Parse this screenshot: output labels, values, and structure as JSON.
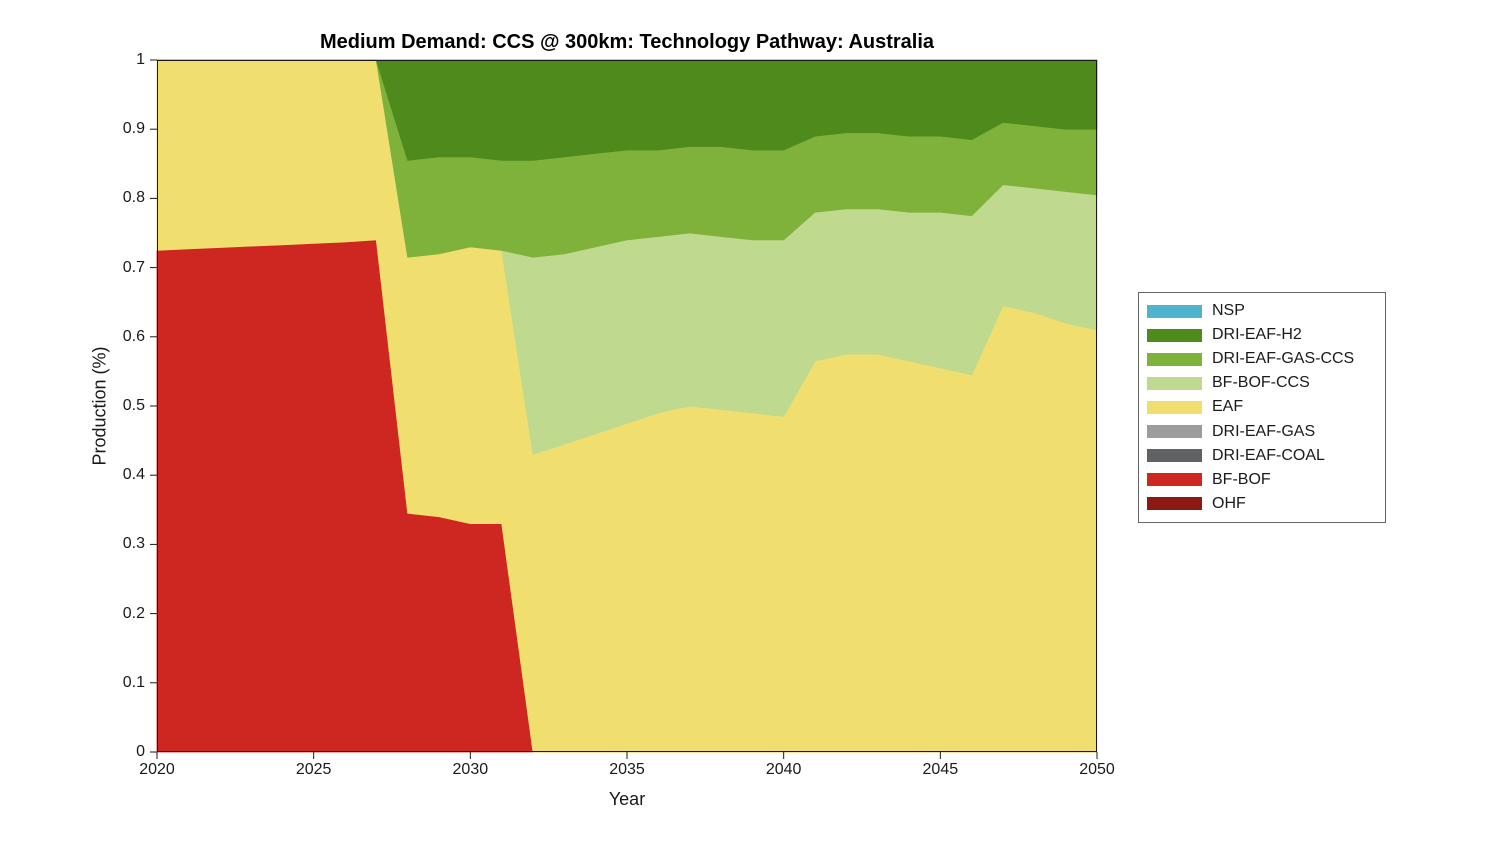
{
  "chart_data": {
    "type": "area",
    "stacked": true,
    "title": "Medium Demand: CCS @ 300km: Technology Pathway: Australia",
    "xlabel": "Year",
    "ylabel": "Production (%)",
    "xlim": [
      2020,
      2050
    ],
    "ylim": [
      0,
      1
    ],
    "grid": false,
    "legend_position": "right-outside",
    "x_ticks": {
      "values": [
        2020,
        2025,
        2030,
        2035,
        2040,
        2045,
        2050
      ],
      "labels": [
        "2020",
        "2025",
        "2030",
        "2035",
        "2040",
        "2045",
        "2050"
      ]
    },
    "y_ticks": {
      "values": [
        0,
        0.1,
        0.2,
        0.3,
        0.4,
        0.5,
        0.6,
        0.7,
        0.8,
        0.9,
        1
      ],
      "labels": [
        "0",
        "0.1",
        "0.2",
        "0.3",
        "0.4",
        "0.5",
        "0.6",
        "0.7",
        "0.8",
        "0.9",
        "1"
      ]
    },
    "x": [
      2020,
      2021,
      2022,
      2023,
      2024,
      2025,
      2026,
      2027,
      2028,
      2029,
      2030,
      2031,
      2032,
      2033,
      2034,
      2035,
      2036,
      2037,
      2038,
      2039,
      2040,
      2041,
      2042,
      2043,
      2044,
      2045,
      2046,
      2047,
      2048,
      2049,
      2050
    ],
    "series": [
      {
        "name": "OHF",
        "color": "#8C1A12",
        "values": [
          0,
          0,
          0,
          0,
          0,
          0,
          0,
          0,
          0,
          0,
          0,
          0,
          0,
          0,
          0,
          0,
          0,
          0,
          0,
          0,
          0,
          0,
          0,
          0,
          0,
          0,
          0,
          0,
          0,
          0,
          0
        ]
      },
      {
        "name": "BF-BOF",
        "color": "#CE2621",
        "values": [
          0.725,
          0.727,
          0.729,
          0.731,
          0.733,
          0.735,
          0.737,
          0.74,
          0.345,
          0.34,
          0.33,
          0.33,
          0,
          0,
          0,
          0,
          0,
          0,
          0,
          0,
          0,
          0,
          0,
          0,
          0,
          0,
          0,
          0,
          0,
          0,
          0
        ]
      },
      {
        "name": "DRI-EAF-COAL",
        "color": "#5E6265",
        "values": [
          0,
          0,
          0,
          0,
          0,
          0,
          0,
          0,
          0,
          0,
          0,
          0,
          0,
          0,
          0,
          0,
          0,
          0,
          0,
          0,
          0,
          0,
          0,
          0,
          0,
          0,
          0,
          0,
          0,
          0,
          0
        ]
      },
      {
        "name": "DRI-EAF-GAS",
        "color": "#9C9C9C",
        "values": [
          0,
          0,
          0,
          0,
          0,
          0,
          0,
          0,
          0,
          0,
          0,
          0,
          0,
          0,
          0,
          0,
          0,
          0,
          0,
          0,
          0,
          0,
          0,
          0,
          0,
          0,
          0,
          0,
          0,
          0,
          0
        ]
      },
      {
        "name": "EAF",
        "color": "#F0DF6E",
        "values": [
          0.275,
          0.273,
          0.271,
          0.269,
          0.267,
          0.265,
          0.263,
          0.26,
          0.37,
          0.38,
          0.4,
          0.395,
          0.43,
          0.445,
          0.46,
          0.475,
          0.49,
          0.5,
          0.495,
          0.49,
          0.485,
          0.565,
          0.575,
          0.575,
          0.565,
          0.555,
          0.545,
          0.645,
          0.635,
          0.62,
          0.61
        ]
      },
      {
        "name": "BF-BOF-CCS",
        "color": "#BFD98F",
        "values": [
          0,
          0,
          0,
          0,
          0,
          0,
          0,
          0,
          0,
          0,
          0,
          0,
          0.285,
          0.275,
          0.27,
          0.265,
          0.255,
          0.25,
          0.25,
          0.25,
          0.255,
          0.215,
          0.21,
          0.21,
          0.215,
          0.225,
          0.23,
          0.175,
          0.18,
          0.19,
          0.195
        ]
      },
      {
        "name": "DRI-EAF-GAS-CCS",
        "color": "#7FB23A",
        "values": [
          0,
          0,
          0,
          0,
          0,
          0,
          0,
          0,
          0.14,
          0.14,
          0.13,
          0.13,
          0.14,
          0.14,
          0.135,
          0.13,
          0.125,
          0.125,
          0.13,
          0.13,
          0.13,
          0.11,
          0.11,
          0.11,
          0.11,
          0.11,
          0.11,
          0.09,
          0.09,
          0.09,
          0.095
        ]
      },
      {
        "name": "DRI-EAF-H2",
        "color": "#4F8A1D",
        "values": [
          0,
          0,
          0,
          0,
          0,
          0,
          0,
          0,
          0.145,
          0.14,
          0.14,
          0.145,
          0.145,
          0.14,
          0.135,
          0.13,
          0.13,
          0.125,
          0.125,
          0.13,
          0.13,
          0.11,
          0.105,
          0.105,
          0.11,
          0.11,
          0.115,
          0.09,
          0.095,
          0.1,
          0.1
        ]
      },
      {
        "name": "NSP",
        "color": "#4FB3CE",
        "values": [
          0,
          0,
          0,
          0,
          0,
          0,
          0,
          0,
          0,
          0,
          0,
          0,
          0,
          0,
          0,
          0,
          0,
          0,
          0,
          0,
          0,
          0,
          0,
          0,
          0,
          0,
          0,
          0,
          0,
          0,
          0
        ]
      }
    ]
  },
  "legend": {
    "items": [
      "NSP",
      "DRI-EAF-H2",
      "DRI-EAF-GAS-CCS",
      "BF-BOF-CCS",
      "EAF",
      "DRI-EAF-GAS",
      "DRI-EAF-COAL",
      "BF-BOF",
      "OHF"
    ]
  }
}
